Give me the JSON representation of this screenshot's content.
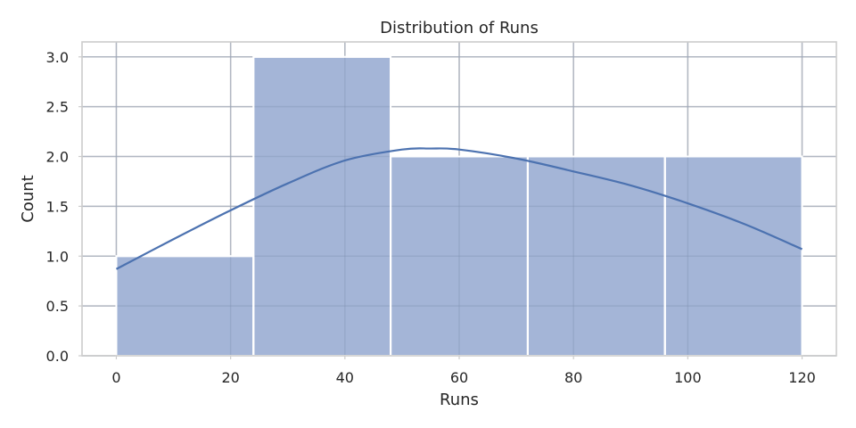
{
  "chart_data": {
    "type": "bar",
    "title": "Distribution of Runs",
    "xlabel": "Runs",
    "ylabel": "Count",
    "xlim": [
      -6,
      126
    ],
    "ylim": [
      0,
      3.15
    ],
    "xticks": [
      0,
      20,
      40,
      60,
      80,
      100,
      120
    ],
    "xtick_labels": [
      "0",
      "20",
      "40",
      "60",
      "80",
      "100",
      "120"
    ],
    "yticks": [
      0,
      0.5,
      1,
      1.5,
      2,
      2.5,
      3
    ],
    "ytick_labels": [
      "0.0",
      "0.5",
      "1.0",
      "1.5",
      "2.0",
      "2.5",
      "3.0"
    ],
    "bins": [
      {
        "x0": 0,
        "x1": 24,
        "count": 1
      },
      {
        "x0": 24,
        "x1": 48,
        "count": 3
      },
      {
        "x0": 48,
        "x1": 72,
        "count": 2
      },
      {
        "x0": 72,
        "x1": 96,
        "count": 2
      },
      {
        "x0": 96,
        "x1": 120,
        "count": 2
      }
    ],
    "kde": {
      "x": [
        0,
        10,
        20,
        30,
        40,
        50,
        55,
        60,
        70,
        80,
        90,
        100,
        110,
        120
      ],
      "y": [
        0.87,
        1.17,
        1.46,
        1.73,
        1.96,
        2.07,
        2.08,
        2.07,
        1.98,
        1.85,
        1.71,
        1.53,
        1.32,
        1.07
      ]
    },
    "grid": true,
    "colors": {
      "bar_fill": "#a4b5d7",
      "kde_line": "#4c72b0"
    }
  }
}
